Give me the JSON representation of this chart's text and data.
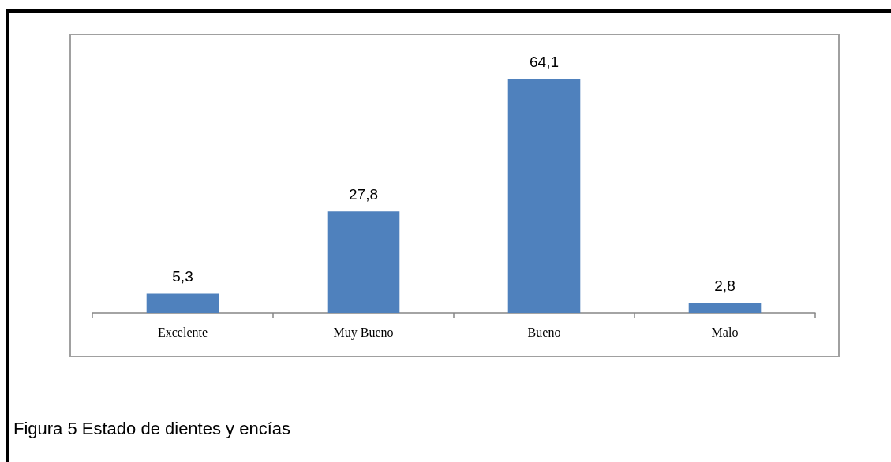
{
  "chart_data": {
    "type": "bar",
    "title": "Figura 5 Estado de dientes y encías",
    "categories": [
      "Excelente",
      "Muy Bueno",
      "Bueno",
      "Malo"
    ],
    "values": [
      5.3,
      27.8,
      64.1,
      2.8
    ],
    "value_labels": [
      "5,3",
      "27,8",
      "64,1",
      "2,8"
    ],
    "color": "#4f81bd"
  }
}
